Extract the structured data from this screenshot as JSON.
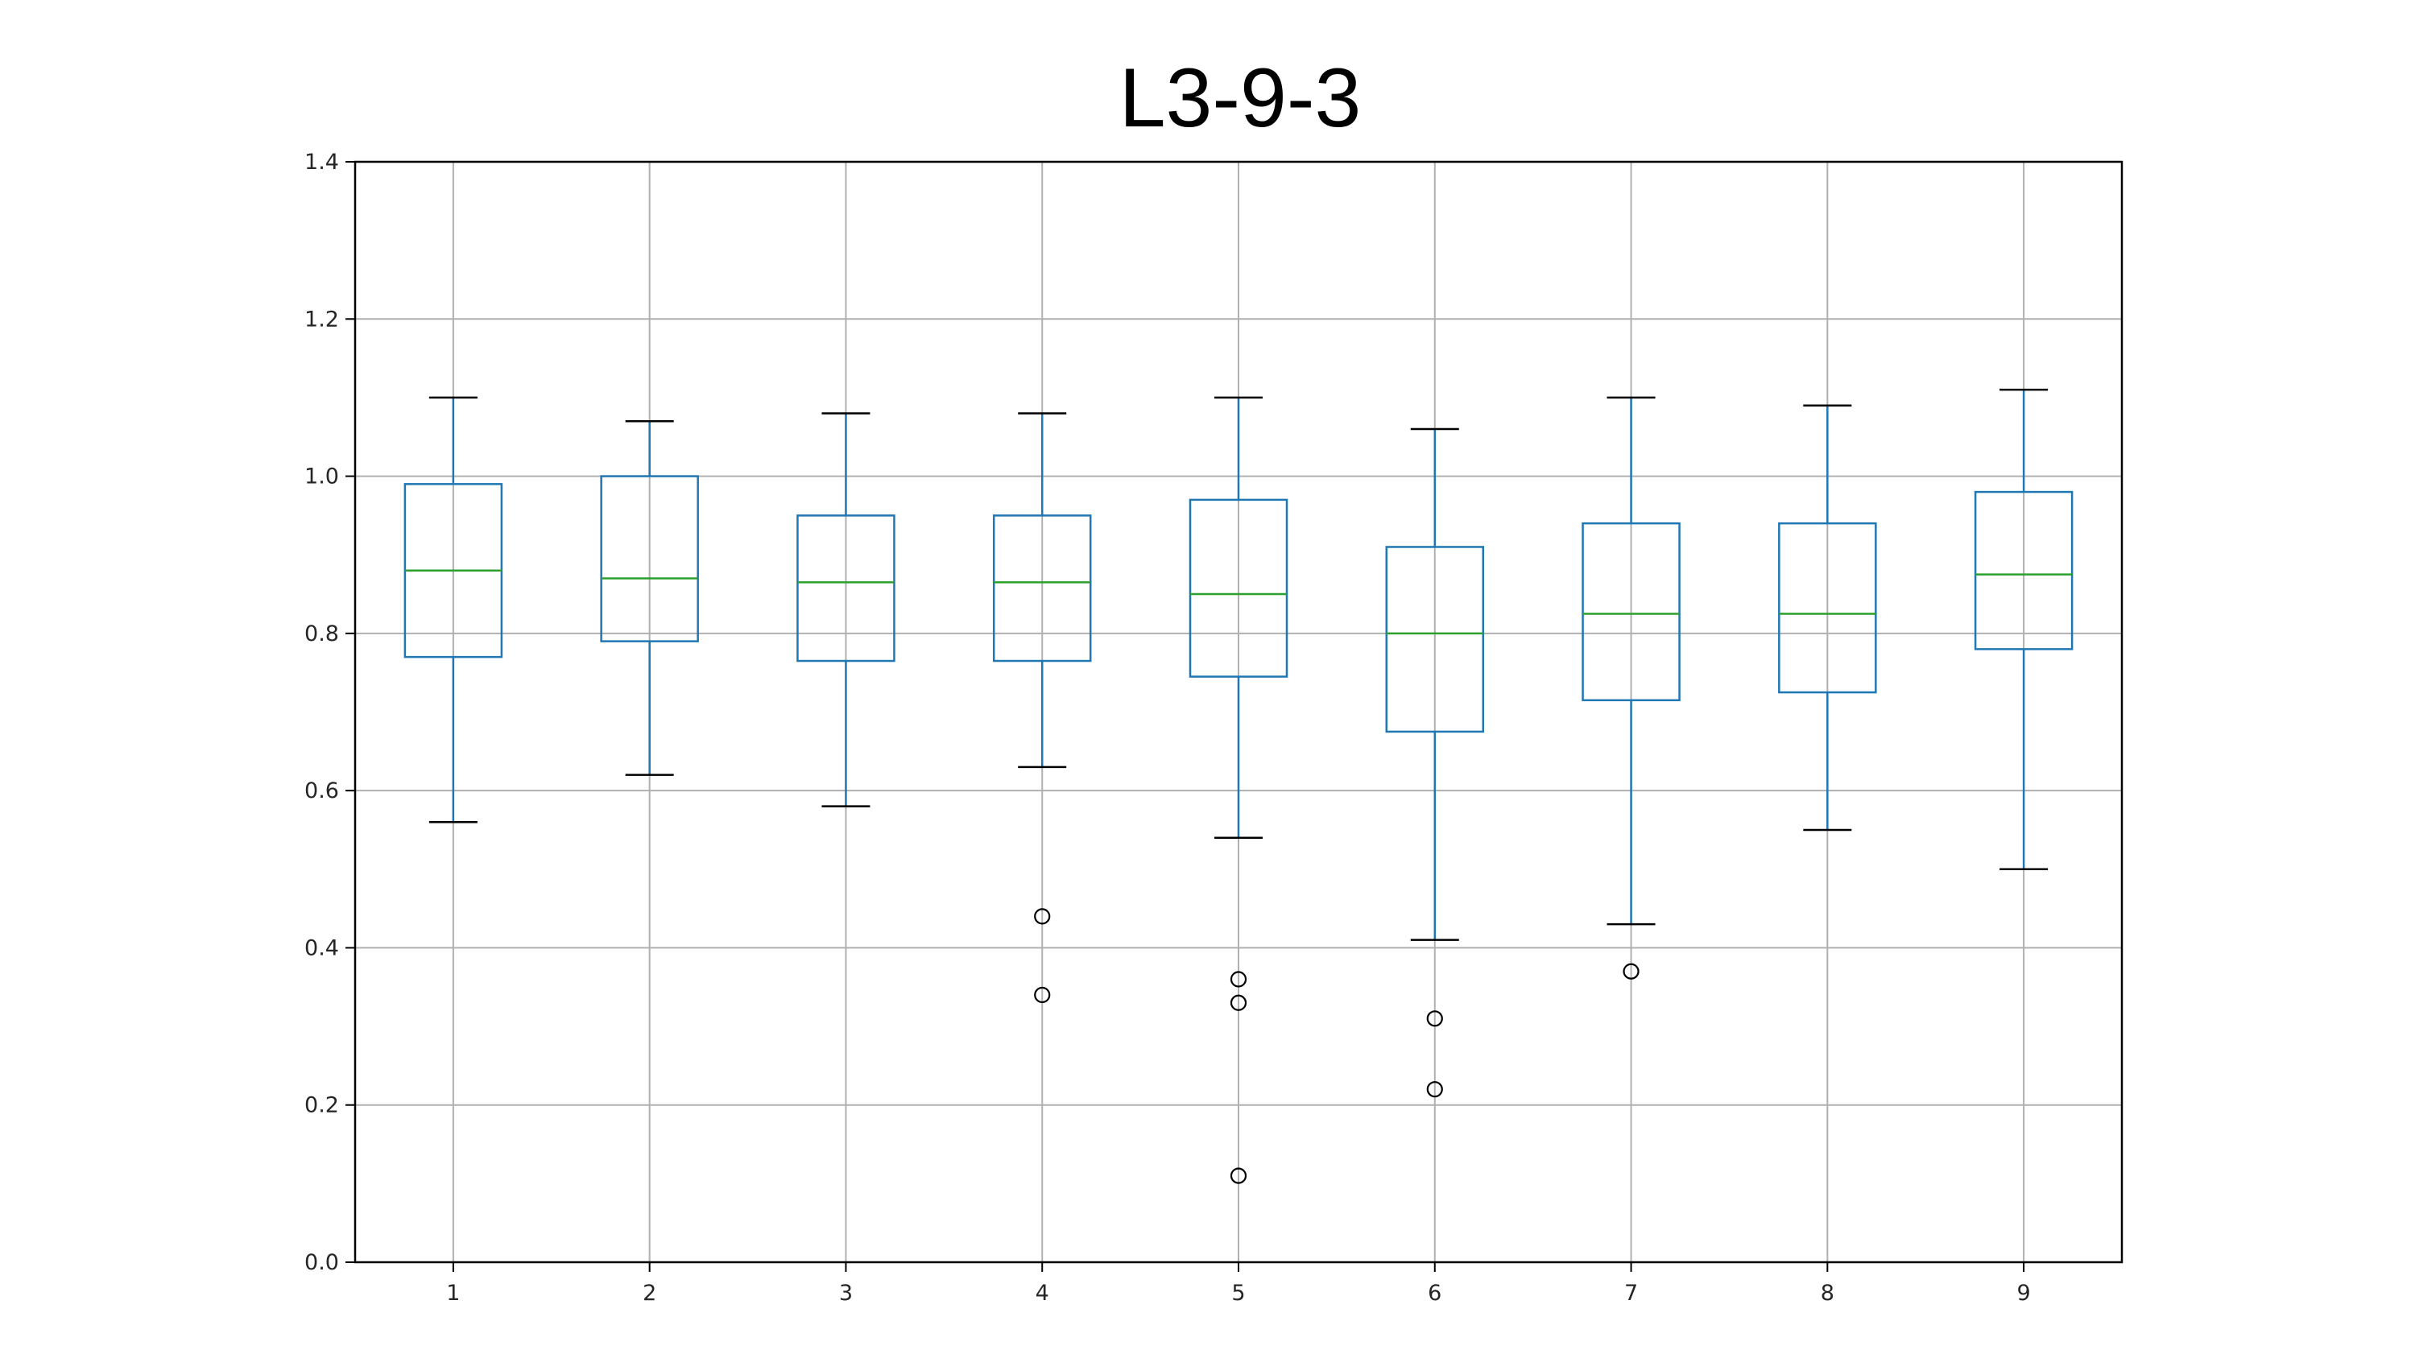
{
  "chart_data": {
    "type": "box",
    "title": "L3-9-3",
    "xlabel": "",
    "ylabel": "",
    "categories": [
      "1",
      "2",
      "3",
      "4",
      "5",
      "6",
      "7",
      "8",
      "9"
    ],
    "ylim": [
      0.0,
      1.4
    ],
    "yticks": [
      0.0,
      0.2,
      0.4,
      0.6,
      0.8,
      1.0,
      1.2,
      1.4
    ],
    "ytick_labels": [
      "0.0",
      "0.2",
      "0.4",
      "0.6",
      "0.8",
      "1.0",
      "1.2",
      "1.4"
    ],
    "grid": true,
    "boxes": [
      {
        "category": "1",
        "whisker_low": 0.56,
        "q1": 0.77,
        "median": 0.88,
        "q3": 0.99,
        "whisker_high": 1.1,
        "outliers": []
      },
      {
        "category": "2",
        "whisker_low": 0.62,
        "q1": 0.79,
        "median": 0.87,
        "q3": 1.0,
        "whisker_high": 1.07,
        "outliers": []
      },
      {
        "category": "3",
        "whisker_low": 0.58,
        "q1": 0.765,
        "median": 0.865,
        "q3": 0.95,
        "whisker_high": 1.08,
        "outliers": []
      },
      {
        "category": "4",
        "whisker_low": 0.63,
        "q1": 0.765,
        "median": 0.865,
        "q3": 0.95,
        "whisker_high": 1.08,
        "outliers": [
          0.44,
          0.34
        ]
      },
      {
        "category": "5",
        "whisker_low": 0.54,
        "q1": 0.745,
        "median": 0.85,
        "q3": 0.97,
        "whisker_high": 1.1,
        "outliers": [
          0.36,
          0.33,
          0.11
        ]
      },
      {
        "category": "6",
        "whisker_low": 0.41,
        "q1": 0.675,
        "median": 0.8,
        "q3": 0.91,
        "whisker_high": 1.06,
        "outliers": [
          0.31,
          0.22
        ]
      },
      {
        "category": "7",
        "whisker_low": 0.43,
        "q1": 0.715,
        "median": 0.825,
        "q3": 0.94,
        "whisker_high": 1.1,
        "outliers": [
          0.37
        ]
      },
      {
        "category": "8",
        "whisker_low": 0.55,
        "q1": 0.725,
        "median": 0.825,
        "q3": 0.94,
        "whisker_high": 1.09,
        "outliers": []
      },
      {
        "category": "9",
        "whisker_low": 0.5,
        "q1": 0.78,
        "median": 0.875,
        "q3": 0.98,
        "whisker_high": 1.11,
        "outliers": []
      }
    ],
    "colors": {
      "box": "#1f77b4",
      "median": "#2ca02c",
      "whisker_cap": "#000000",
      "grid": "#b0b0b0",
      "axes": "#000000"
    }
  }
}
